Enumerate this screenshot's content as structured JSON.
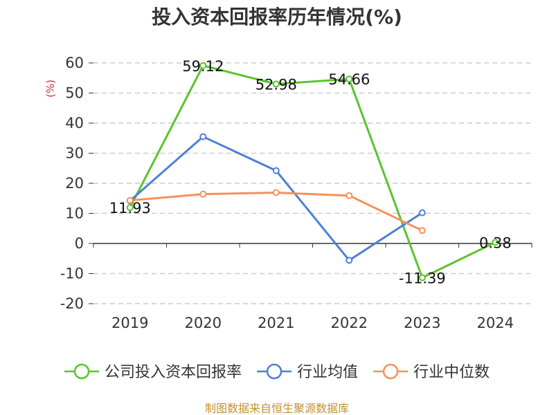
{
  "chart_data": {
    "type": "line",
    "title": "投入资本回报率历年情况(%)",
    "ylabel": "(%)",
    "categories": [
      "2019",
      "2020",
      "2021",
      "2022",
      "2023",
      "2024"
    ],
    "ylim": [
      -20,
      60
    ],
    "yticks": [
      60,
      50,
      40,
      30,
      20,
      10,
      0,
      -10,
      -20
    ],
    "grid": true,
    "legend_position": "bottom",
    "series": [
      {
        "name": "公司投入资本回报率",
        "color": "#5ac42c",
        "values": [
          11.93,
          59.12,
          52.98,
          54.66,
          -11.39,
          0.38
        ],
        "labels": [
          "11.93",
          "59.12",
          "52.98",
          "54.66",
          "-11.39",
          "0.38"
        ]
      },
      {
        "name": "行业均值",
        "color": "#4e7fd8",
        "values": [
          14.2,
          35.5,
          24.2,
          -5.6,
          10.2,
          null
        ]
      },
      {
        "name": "行业中位数",
        "color": "#f89058",
        "values": [
          14.3,
          16.4,
          16.9,
          15.9,
          4.3,
          null
        ]
      }
    ]
  },
  "footer": {
    "text": "制图数据来自恒生聚源数据库",
    "color": "#c0922b"
  },
  "colors": {
    "ylabel": "#d32f2f",
    "grid": "#cccccc",
    "axis": "#333333"
  }
}
